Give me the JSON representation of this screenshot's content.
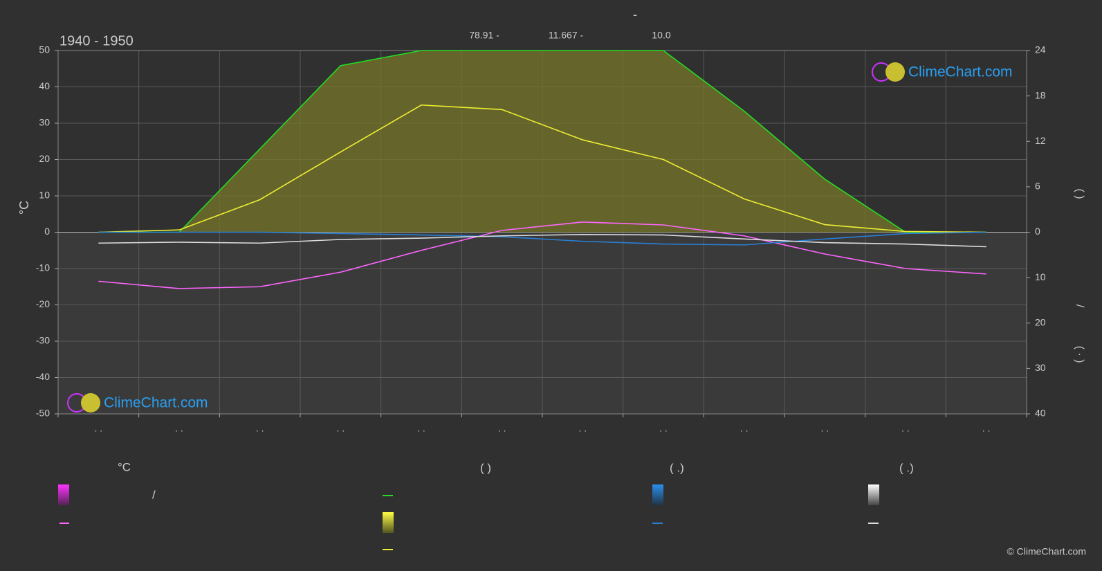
{
  "chart_data": {
    "type": "line",
    "title": "-",
    "period": "1940 - 1950",
    "top_values": [
      "78.91 -",
      "11.667 -",
      "10.0"
    ],
    "ylabel": "°C",
    "y2labels": [
      "(   )",
      "/",
      "( · )"
    ],
    "categories": [
      ". .",
      ". .",
      ". .",
      ". .",
      ". .",
      ". .",
      ". .",
      ". .",
      ". .",
      ". .",
      ". .",
      ". ."
    ],
    "ylim": [
      -50,
      50
    ],
    "yticks": [
      -50,
      -40,
      -30,
      -20,
      -10,
      0,
      10,
      20,
      30,
      40,
      50
    ],
    "y2lim": [
      0,
      24
    ],
    "y2ticks": [
      0,
      6,
      12,
      18,
      24
    ],
    "y3lim": [
      0,
      40
    ],
    "y3ticks": [
      10,
      20,
      30,
      40
    ],
    "grid": true,
    "series": [
      {
        "color": "#ff66ff",
        "axis": "y",
        "values": [
          -13.5,
          -15.5,
          -15,
          -11,
          -5,
          0.5,
          2.8,
          2,
          -1,
          -6,
          -10,
          -11.5
        ]
      },
      {
        "color": "#22dd22",
        "axis": "y2",
        "fill": "#77772a",
        "values": [
          0,
          0,
          11,
          22,
          24,
          24,
          24,
          24,
          16,
          7,
          0,
          0
        ]
      },
      {
        "color": "#eeee33",
        "axis": "y2",
        "values": [
          0,
          0.3,
          4.3,
          10.6,
          16.8,
          16.2,
          12.2,
          9.6,
          4.4,
          1,
          0.1,
          0
        ]
      },
      {
        "color": "#2a7fd4",
        "axis": "y3",
        "values": [
          0,
          0,
          0,
          0.3,
          0.6,
          1,
          2,
          2.6,
          2.8,
          1.5,
          0.3,
          0
        ]
      },
      {
        "color": "#dddddd",
        "axis": "y3",
        "values": [
          2.4,
          2.2,
          2.4,
          1.6,
          1.3,
          0.8,
          0.5,
          0.6,
          1.5,
          2.3,
          2.6,
          3.2
        ]
      }
    ],
    "legend": {
      "headings": [
        "°C",
        "(           )",
        "(   .)",
        "(   .)"
      ],
      "texts": [
        "/"
      ]
    },
    "logo": "ClimeChart.com",
    "copyright": "© ClimeChart.com"
  }
}
